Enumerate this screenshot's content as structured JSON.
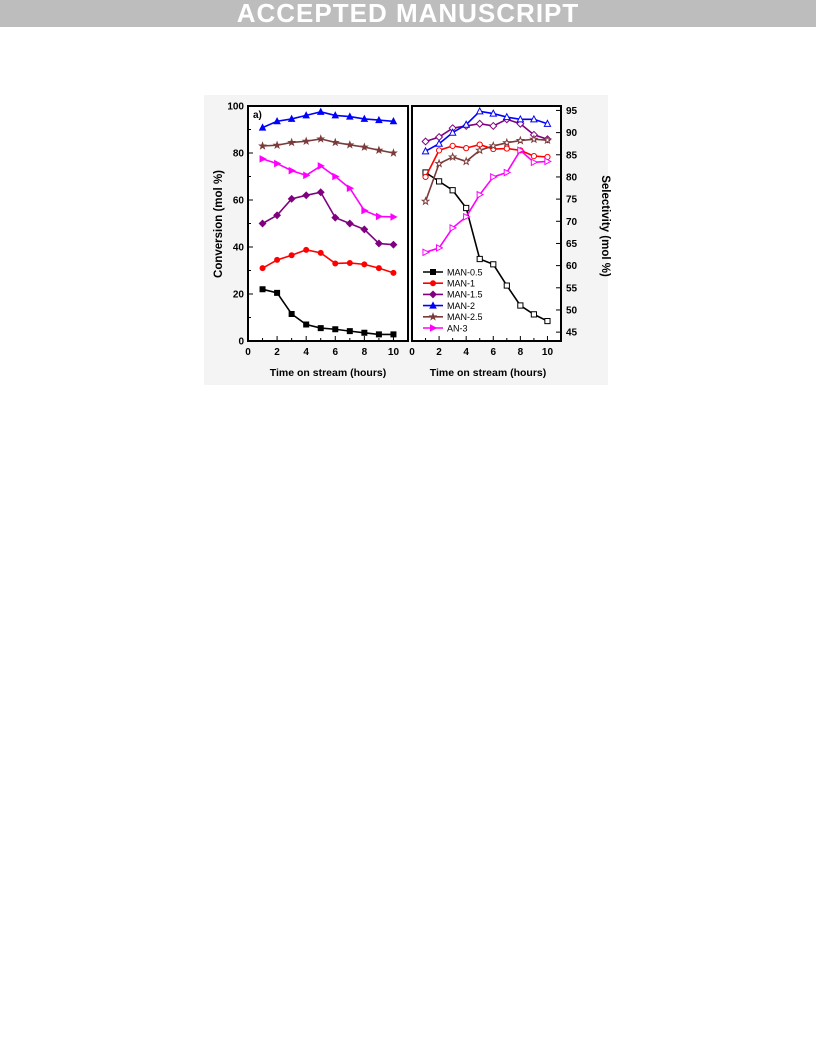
{
  "banner": {
    "text": "ACCEPTED MANUSCRIPT"
  },
  "chart_data": [
    {
      "type": "line",
      "panel_label": "a)",
      "xlabel": "Time on stream (hours)",
      "ylabel": "Conversion (mol %)",
      "xlim": [
        0,
        11
      ],
      "ylim": [
        0,
        100
      ],
      "xticks": [
        0,
        2,
        4,
        6,
        8,
        10
      ],
      "yticks": [
        0,
        20,
        40,
        60,
        80,
        100
      ],
      "x": [
        1,
        2,
        3,
        4,
        5,
        6,
        7,
        8,
        9,
        10
      ],
      "grid": false,
      "series": [
        {
          "name": "MAN-0.5",
          "color": "#000000",
          "marker": "square",
          "filled": true,
          "values": [
            22,
            20.5,
            11.5,
            7,
            5.5,
            5,
            4.2,
            3.5,
            2.8,
            2.8
          ]
        },
        {
          "name": "MAN-1",
          "color": "#ff0000",
          "marker": "circle",
          "filled": true,
          "values": [
            31,
            34.5,
            36.5,
            38.8,
            37.5,
            33,
            33.2,
            32.6,
            31,
            29
          ]
        },
        {
          "name": "MAN-1.5",
          "color": "#800080",
          "marker": "diamond",
          "filled": true,
          "values": [
            50,
            53.5,
            60.5,
            62,
            63.3,
            52.5,
            50,
            47.5,
            41.5,
            41
          ]
        },
        {
          "name": "MAN-2",
          "color": "#0000ff",
          "marker": "triangle",
          "filled": true,
          "values": [
            90.8,
            93.5,
            94.5,
            96,
            97.5,
            96,
            95.5,
            94.5,
            94,
            93.5
          ]
        },
        {
          "name": "MAN-2.5",
          "color": "#7b3b3b",
          "marker": "star",
          "filled": true,
          "values": [
            83,
            83.3,
            84.5,
            85,
            86,
            84.5,
            83.5,
            82.5,
            81.2,
            80
          ]
        },
        {
          "name": "AN-3",
          "color": "#ff00ff",
          "marker": "triangle-right",
          "filled": true,
          "values": [
            77.5,
            75.5,
            72.5,
            70.5,
            74.5,
            70,
            65,
            55.5,
            53,
            52.8
          ]
        }
      ]
    },
    {
      "type": "line",
      "xlabel": "Time on stream (hours)",
      "ylabel": "Selectivity (mol %)",
      "xlim": [
        0,
        11
      ],
      "ylim": [
        43,
        96
      ],
      "xticks": [
        0,
        2,
        4,
        6,
        8,
        10
      ],
      "yticks": [
        45,
        50,
        55,
        60,
        65,
        70,
        75,
        80,
        85,
        90,
        95
      ],
      "x": [
        1,
        2,
        3,
        4,
        5,
        6,
        7,
        8,
        9,
        10
      ],
      "grid": false,
      "legend": "center-left",
      "series": [
        {
          "name": "MAN-0.5",
          "color": "#000000",
          "marker": "square",
          "filled": false,
          "values": [
            81,
            79,
            77,
            73,
            61.5,
            60.3,
            55.5,
            51,
            49,
            47.5
          ]
        },
        {
          "name": "MAN-1",
          "color": "#ff0000",
          "marker": "circle",
          "filled": false,
          "values": [
            80,
            86,
            87,
            86.5,
            87.3,
            86.3,
            86.4,
            86,
            84.7,
            84.5
          ]
        },
        {
          "name": "MAN-1.5",
          "color": "#800080",
          "marker": "diamond",
          "filled": false,
          "values": [
            88,
            89,
            91,
            91.5,
            92,
            91.5,
            93,
            92,
            89.5,
            88.5
          ]
        },
        {
          "name": "MAN-2",
          "color": "#0000ff",
          "marker": "triangle",
          "filled": false,
          "values": [
            85.8,
            87.5,
            90,
            91.8,
            94.8,
            94.3,
            93.5,
            93,
            93,
            92
          ]
        },
        {
          "name": "MAN-2.5",
          "color": "#7b3b3b",
          "marker": "star",
          "filled": false,
          "values": [
            74.5,
            83,
            84.5,
            83.5,
            86,
            87,
            87.7,
            88.2,
            88.5,
            88.3
          ]
        },
        {
          "name": "AN-3",
          "color": "#ff00ff",
          "marker": "triangle-right",
          "filled": false,
          "values": [
            63,
            64,
            68.5,
            71,
            76,
            80,
            81,
            86,
            83.3,
            83.5
          ]
        }
      ]
    }
  ]
}
